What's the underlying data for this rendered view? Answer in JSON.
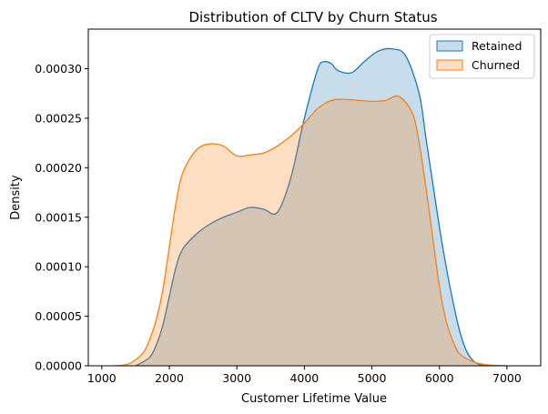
{
  "chart_data": {
    "type": "area",
    "title": "Distribution of CLTV by Churn Status",
    "xlabel": "Customer Lifetime Value",
    "ylabel": "Density",
    "xlim": [
      800,
      7500
    ],
    "ylim": [
      0,
      0.00034
    ],
    "xticks": [
      1000,
      2000,
      3000,
      4000,
      5000,
      6000,
      7000
    ],
    "xtick_labels": [
      "1000",
      "2000",
      "3000",
      "4000",
      "5000",
      "6000",
      "7000"
    ],
    "yticks": [
      0,
      5e-05,
      0.0001,
      0.00015,
      0.0002,
      0.00025,
      0.0003
    ],
    "ytick_labels": [
      "0.00000",
      "0.00005",
      "0.00010",
      "0.00015",
      "0.00020",
      "0.00025",
      "0.00030"
    ],
    "grid": false,
    "legend_position": "top-right",
    "series": [
      {
        "name": "Retained",
        "color": "#1f77b4",
        "x": [
          1500,
          1700,
          1800,
          1900,
          2000,
          2100,
          2200,
          2400,
          2600,
          2800,
          3000,
          3200,
          3400,
          3600,
          3800,
          4000,
          4200,
          4300,
          4400,
          4500,
          4700,
          4900,
          5100,
          5300,
          5500,
          5700,
          5800,
          5900,
          6000,
          6100,
          6200,
          6300,
          6400,
          6500,
          6600,
          6700
        ],
        "y": [
          0.0,
          8e-06,
          2e-05,
          4e-05,
          7e-05,
          0.0001,
          0.000118,
          0.000133,
          0.000143,
          0.00015,
          0.000155,
          0.00016,
          0.000158,
          0.000155,
          0.00019,
          0.00025,
          0.0003,
          0.000307,
          0.000305,
          0.000298,
          0.000296,
          0.000308,
          0.000318,
          0.00032,
          0.000313,
          0.000275,
          0.00023,
          0.000185,
          0.00014,
          0.0001,
          6.5e-05,
          3.5e-05,
          1.5e-05,
          5e-06,
          1e-06,
          0.0
        ]
      },
      {
        "name": "Churned",
        "color": "#ff7f0e",
        "x": [
          1200,
          1400,
          1600,
          1700,
          1800,
          1900,
          2000,
          2100,
          2200,
          2400,
          2600,
          2800,
          3000,
          3200,
          3400,
          3600,
          3800,
          4000,
          4200,
          4400,
          4600,
          4800,
          5000,
          5200,
          5400,
          5600,
          5700,
          5800,
          5900,
          6000,
          6100,
          6200,
          6300,
          6500,
          6700,
          7000
        ],
        "y": [
          0.0,
          2e-06,
          1.2e-05,
          2.5e-05,
          4.5e-05,
          7.5e-05,
          0.00012,
          0.000165,
          0.000195,
          0.000218,
          0.000224,
          0.000222,
          0.000212,
          0.000213,
          0.000215,
          0.000222,
          0.000232,
          0.000245,
          0.00026,
          0.000268,
          0.000269,
          0.000268,
          0.000267,
          0.000268,
          0.000272,
          0.000255,
          0.000225,
          0.00018,
          0.00013,
          8e-05,
          4.5e-05,
          2.5e-05,
          1.2e-05,
          4e-06,
          1e-06,
          0.0
        ]
      }
    ]
  }
}
